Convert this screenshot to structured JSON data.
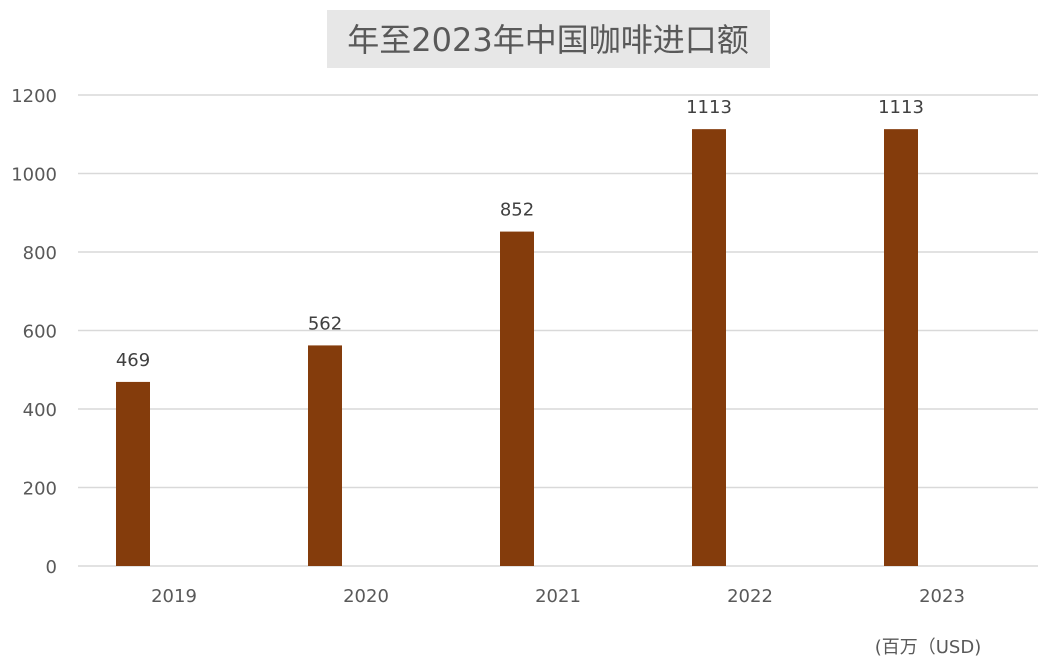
{
  "chart_data": {
    "type": "bar",
    "title": "年至2023年中国咖啡进口额",
    "unit_label": "(百万（USD)",
    "categories": [
      "2019",
      "2020",
      "2021",
      "2022",
      "2023"
    ],
    "values": [
      469,
      562,
      852,
      1113,
      1113
    ],
    "data_labels": [
      "469",
      "562",
      "852",
      "1113",
      "1113"
    ],
    "ylim": [
      0,
      1200
    ],
    "yticks": [
      "0",
      "200",
      "400",
      "600",
      "800",
      "1000",
      "1200"
    ],
    "grid": true,
    "legend": "none",
    "bar_color": "#843c0c"
  }
}
